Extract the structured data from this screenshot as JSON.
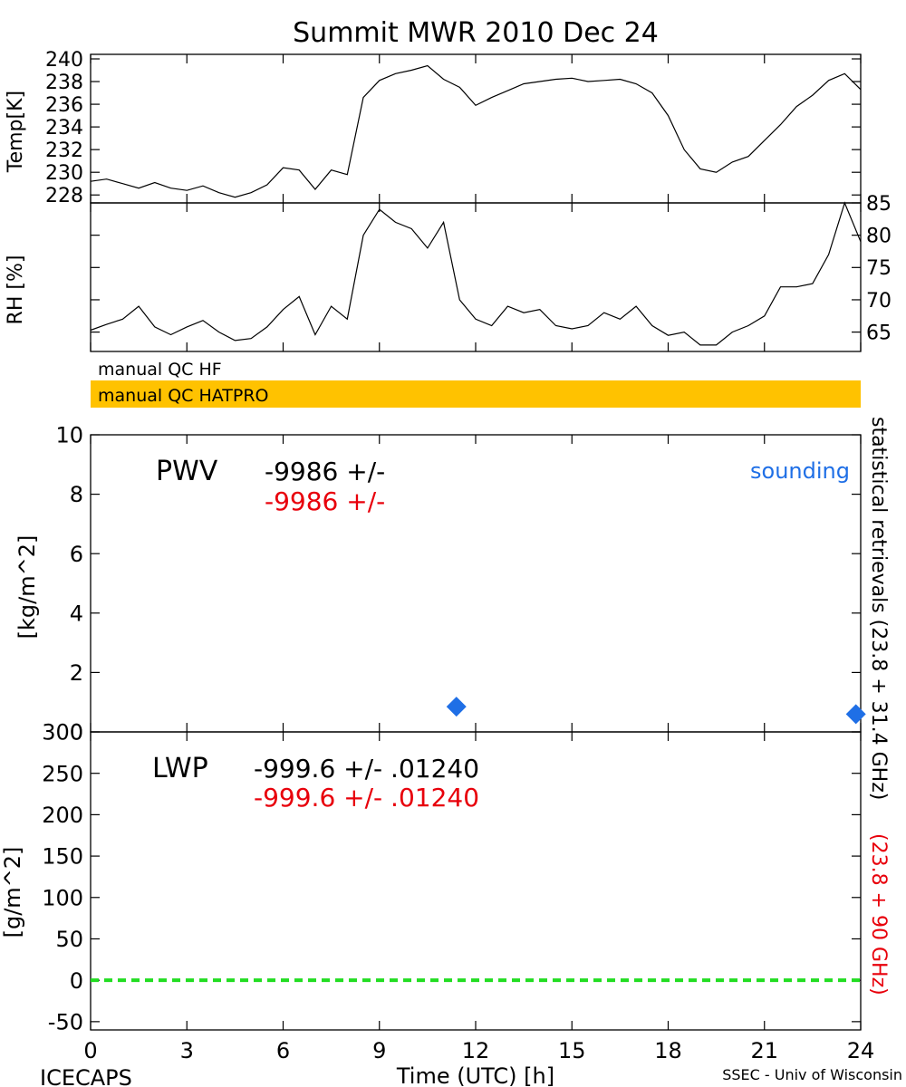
{
  "title": "Summit MWR 2010 Dec 24",
  "colors": {
    "black": "#000000",
    "red": "#e8000b",
    "blue": "#1f6fe6",
    "green": "#22dd22",
    "qc_bar": "#ffc200"
  },
  "qc": {
    "hf_label": "manual QC HF",
    "hatpro_label": "manual QC HATPRO",
    "hatpro_color": "#ffc200"
  },
  "footer": {
    "left": "ICECAPS",
    "right": "SSEC - Univ of Wisconsin"
  },
  "side_labels": {
    "black": "statistical retrievals (23.8 + 31.4 GHz)",
    "red": "(23.8 + 90 GHz)"
  },
  "chart_data": [
    {
      "type": "line",
      "ylabel": "Temp[K]",
      "ylim": [
        227.3,
        240.4
      ],
      "yticks": [
        "228",
        "230",
        "232",
        "234",
        "236",
        "238",
        "240"
      ],
      "series": [
        {
          "x": [
            0,
            0.5,
            1,
            1.5,
            2,
            2.5,
            3,
            3.5,
            4,
            4.5,
            5,
            5.5,
            6,
            6.5,
            7,
            7.5,
            8,
            8.5,
            9,
            9.5,
            10,
            10.5,
            11,
            11.5,
            12,
            12.5,
            13,
            13.5,
            14,
            14.5,
            15,
            15.5,
            16,
            16.5,
            17,
            17.5,
            18,
            18.5,
            19,
            19.5,
            20,
            20.5,
            21,
            21.5,
            22,
            22.5,
            23,
            23.5,
            24
          ],
          "y": [
            229.2,
            229.4,
            229.0,
            228.6,
            229.1,
            228.6,
            228.4,
            228.8,
            228.2,
            227.8,
            228.2,
            228.9,
            230.4,
            230.2,
            228.5,
            230.2,
            229.8,
            236.6,
            238.1,
            238.7,
            239.0,
            239.4,
            238.2,
            237.5,
            235.9,
            236.6,
            237.2,
            237.8,
            238.0,
            238.2,
            238.3,
            238.0,
            238.1,
            238.2,
            237.8,
            237.0,
            235.0,
            232.0,
            230.3,
            230.0,
            230.9,
            231.4,
            232.8,
            234.2,
            235.8,
            236.8,
            238.1,
            238.7,
            237.3
          ]
        }
      ]
    },
    {
      "type": "line",
      "ylabel": "RH [%]",
      "ylim": [
        62,
        85
      ],
      "yticks": [
        "65",
        "70",
        "75",
        "80",
        "85"
      ],
      "series": [
        {
          "x": [
            0,
            0.5,
            1,
            1.5,
            2,
            2.5,
            3,
            3.5,
            4,
            4.5,
            5,
            5.5,
            6,
            6.5,
            7,
            7.5,
            8,
            8.5,
            9,
            9.5,
            10,
            10.5,
            11,
            11.5,
            12,
            12.5,
            13,
            13.5,
            14,
            14.5,
            15,
            15.5,
            16,
            16.5,
            17,
            17.5,
            18,
            18.5,
            19,
            19.5,
            20,
            20.5,
            21,
            21.5,
            22,
            22.5,
            23,
            23.5,
            24
          ],
          "y": [
            65.3,
            66.2,
            67.0,
            69.0,
            65.8,
            64.6,
            65.8,
            66.8,
            65.0,
            63.7,
            64.0,
            65.8,
            68.5,
            70.5,
            64.6,
            69.0,
            67.0,
            80.0,
            84.0,
            82.0,
            81.0,
            78.0,
            82.0,
            70.0,
            67.0,
            66.0,
            69.0,
            68.0,
            68.5,
            66.0,
            65.5,
            66.0,
            68.0,
            67.0,
            69.0,
            66.0,
            64.5,
            65.0,
            63.0,
            63.0,
            65.0,
            66.0,
            67.5,
            72.0,
            72.0,
            72.5,
            77.0,
            85.0,
            79.0
          ]
        }
      ]
    },
    {
      "type": "scatter",
      "ylabel": "[kg/m^2]",
      "ylim": [
        0,
        10
      ],
      "yticks": [
        "0",
        "2",
        "4",
        "6",
        "8",
        "10"
      ],
      "label": "PWV",
      "values_black": "-9986 +/-",
      "values_red": "-9986 +/-",
      "legend": "sounding",
      "points": [
        {
          "x": 11.4,
          "y": 0.85
        },
        {
          "x": 23.85,
          "y": 0.6
        }
      ]
    },
    {
      "type": "line",
      "ylabel": "[g/m^2]",
      "ylim": [
        -60,
        300
      ],
      "yticks": [
        "-50",
        "0",
        "50",
        "100",
        "150",
        "200",
        "250",
        "300"
      ],
      "label": "LWP",
      "values_black": "-999.6 +/- .01240",
      "values_red": "-999.6 +/- .01240",
      "series": [
        {
          "x": [
            0,
            24
          ],
          "y": [
            0,
            0
          ]
        }
      ]
    },
    {
      "type": "axis",
      "xlabel": "Time (UTC) [h]",
      "xlim": [
        0,
        24
      ],
      "xticks": [
        "0",
        "3",
        "6",
        "9",
        "12",
        "15",
        "18",
        "21",
        "24"
      ]
    }
  ]
}
